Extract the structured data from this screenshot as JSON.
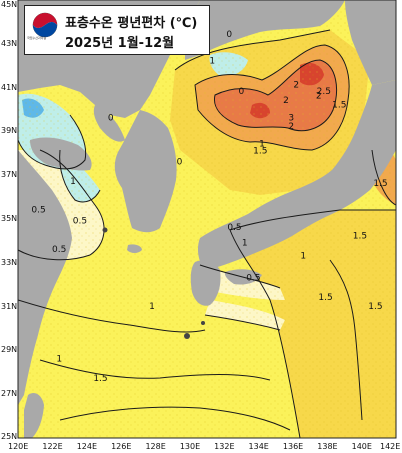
{
  "title": {
    "line1": "표층수온 평년편차 (℃)",
    "line2": "2025년 1월-12월",
    "agency": "국립수산과학원"
  },
  "axes": {
    "lat_labels": [
      "45N",
      "43N",
      "41N",
      "39N",
      "37N",
      "35N",
      "33N",
      "31N",
      "29N",
      "27N",
      "25N"
    ],
    "lon_labels": [
      "120E",
      "122E",
      "124E",
      "126E",
      "128E",
      "130E",
      "132E",
      "134E",
      "136E",
      "138E",
      "140E",
      "142E"
    ],
    "lat_range": [
      25,
      45
    ],
    "lon_range": [
      120,
      142
    ]
  },
  "contour_labels": {
    "values": [
      "0",
      "0",
      "1",
      "0.5",
      "0.5",
      "0.5",
      "1",
      "1",
      "1.5",
      "2",
      "2",
      "2",
      "2",
      "2.5",
      "3",
      "1.5",
      "1.5",
      "1.5",
      "1.5",
      "1",
      "0.5",
      "0.5",
      "1",
      "1",
      "1.5",
      "1.5",
      "1",
      "0",
      "0"
    ],
    "lat": [
      40.7,
      39.5,
      36.6,
      35.3,
      34.8,
      33.5,
      30.9,
      33.8,
      38.0,
      39.1,
      40.3,
      41.0,
      40.5,
      40.7,
      39.5,
      40.1,
      36.5,
      34.1,
      31.3,
      33.2,
      32.2,
      34.5,
      38.3,
      28.5,
      27.6,
      30.9,
      42.1,
      43.3,
      37.5
    ],
    "lon": [
      133.0,
      125.4,
      123.2,
      121.2,
      123.6,
      122.4,
      127.8,
      133.2,
      134.1,
      135.9,
      135.6,
      136.2,
      137.5,
      137.8,
      135.9,
      138.7,
      141.1,
      139.9,
      137.9,
      136.6,
      133.7,
      132.6,
      134.2,
      122.4,
      124.8,
      140.8,
      131.3,
      132.3,
      129.4
    ]
  },
  "legend_colors": {
    "land": "#a9a9a9",
    "below_zero": "#bfeee9",
    "zero_to_half": "#fdf7c7",
    "half_to_one": "#fbf25a",
    "one_to_one_half": "#f7d84a",
    "one_half_to_two": "#f2a94e",
    "two_to_three": "#e87a47",
    "above_three": "#d8442e"
  }
}
